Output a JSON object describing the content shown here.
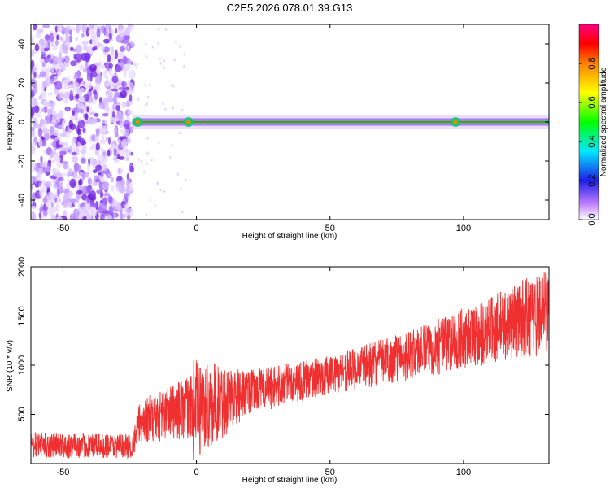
{
  "title": "C2E5.2026.078.01.39.G13",
  "chart_data": [
    {
      "type": "heatmap",
      "title": "",
      "xlabel": "Height of straight line (km)",
      "ylabel": "Frequency (Hz)",
      "xlim": [
        -62,
        132
      ],
      "ylim": [
        -50,
        50
      ],
      "xticks": [
        -50,
        0,
        50,
        100
      ],
      "yticks": [
        -40,
        -20,
        0,
        20,
        40
      ],
      "colorbar": {
        "label": "Normalized spectral amplitude",
        "range": [
          0,
          1
        ],
        "ticks": [
          "0.0",
          "0.2",
          "0.4",
          "0.6",
          "0.8"
        ],
        "colormap": [
          "#f0e8ff",
          "#8a2be2",
          "#1e1ee8",
          "#00e8ff",
          "#00ff00",
          "#ffff00",
          "#ff8000",
          "#ff0000",
          "#ff0080"
        ]
      },
      "description_points": {
        "noise_region_x": [
          -62,
          -24
        ],
        "signal_start_x": -24,
        "signal_center_frequency": 0,
        "signal_peaks_x": [
          -22,
          -3,
          97
        ]
      }
    },
    {
      "type": "line",
      "title": "",
      "xlabel": "Height of straight line (km)",
      "ylabel": "SNR (10 * v/v)",
      "xlim": [
        -62,
        132
      ],
      "ylim": [
        0,
        2000
      ],
      "xticks": [
        -50,
        0,
        50,
        100
      ],
      "yticks": [
        500,
        1000,
        1500,
        2000
      ],
      "color": "#f03030",
      "trend": [
        {
          "x": -62,
          "low": 50,
          "high": 320
        },
        {
          "x": -24,
          "low": 50,
          "high": 300
        },
        {
          "x": -21,
          "low": 200,
          "high": 650
        },
        {
          "x": -2,
          "low": 250,
          "high": 900
        },
        {
          "x": -1,
          "low": 0,
          "high": 1060
        },
        {
          "x": 20,
          "low": 500,
          "high": 950
        },
        {
          "x": 50,
          "low": 700,
          "high": 1100
        },
        {
          "x": 80,
          "low": 850,
          "high": 1350
        },
        {
          "x": 110,
          "low": 1000,
          "high": 1700
        },
        {
          "x": 132,
          "low": 1100,
          "high": 2000
        }
      ]
    }
  ]
}
